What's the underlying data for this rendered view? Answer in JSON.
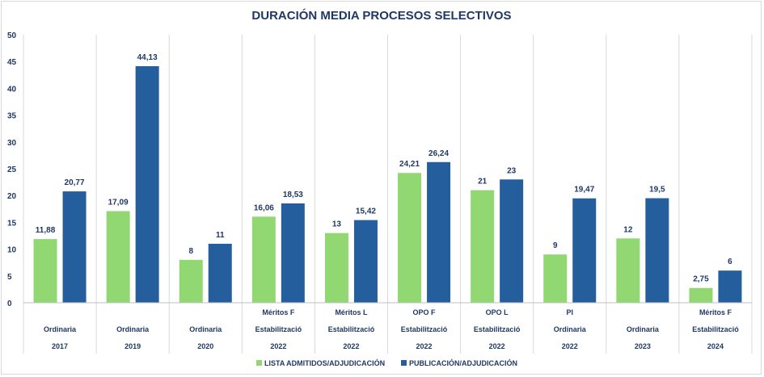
{
  "chart_data": {
    "type": "bar",
    "title": "DURACIÓN MEDIA PROCESOS SELECTIVOS",
    "ylim": [
      0,
      50
    ],
    "yticks": [
      "0",
      "5",
      "10",
      "15",
      "20",
      "25",
      "30",
      "35",
      "40",
      "45",
      "50"
    ],
    "grid": "vertical category separators",
    "legend_position": "bottom",
    "categories": [
      {
        "lines": [
          "",
          "Ordinaria",
          "2017"
        ]
      },
      {
        "lines": [
          "",
          "Ordinaria",
          "2019"
        ]
      },
      {
        "lines": [
          "",
          "Ordinaria",
          "2020"
        ]
      },
      {
        "lines": [
          "Méritos F",
          "Estabilització",
          "2022"
        ]
      },
      {
        "lines": [
          "Méritos L",
          "Estabilització",
          "2022"
        ]
      },
      {
        "lines": [
          "OPO F",
          "Estabilització",
          "2022"
        ]
      },
      {
        "lines": [
          "OPO L",
          "Estabilització",
          "2022"
        ]
      },
      {
        "lines": [
          "PI",
          "Ordinaria",
          "2022"
        ]
      },
      {
        "lines": [
          "",
          "Ordinaria",
          "2023"
        ]
      },
      {
        "lines": [
          "Méritos F",
          "Estabilització",
          "2024"
        ]
      }
    ],
    "series": [
      {
        "name": "LISTA ADMITIDOS/ADJUDICACIÓN",
        "color": "#92d872",
        "values": [
          11.88,
          17.09,
          8,
          16.06,
          13,
          24.21,
          21,
          9,
          12,
          2.75
        ],
        "labels": [
          "11,88",
          "17,09",
          "8",
          "16,06",
          "13",
          "24,21",
          "21",
          "9",
          "12",
          "2,75"
        ]
      },
      {
        "name": "PUBLICACIÓN/ADJUDICACIÓN",
        "color": "#255e9d",
        "values": [
          20.77,
          44.13,
          11,
          18.53,
          15.42,
          26.24,
          23,
          19.47,
          19.5,
          6
        ],
        "labels": [
          "20,77",
          "44,13",
          "11",
          "18,53",
          "15,42",
          "26,24",
          "23",
          "19,47",
          "19,5",
          "6"
        ]
      }
    ]
  }
}
